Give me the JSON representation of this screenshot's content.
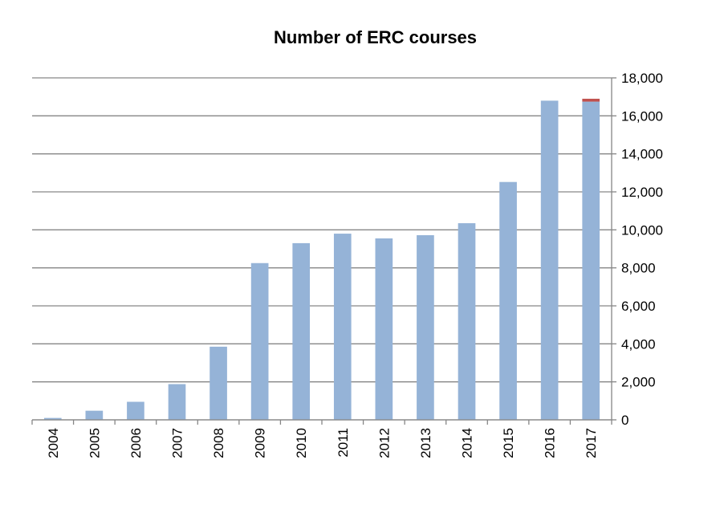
{
  "chart_data": {
    "type": "bar",
    "title": "Number of ERC courses",
    "xlabel": "",
    "ylabel": "",
    "categories": [
      "2004",
      "2005",
      "2006",
      "2007",
      "2008",
      "2009",
      "2010",
      "2011",
      "2012",
      "2013",
      "2014",
      "2015",
      "2016",
      "2017"
    ],
    "series": [
      {
        "values": [
          100,
          480,
          950,
          1880,
          3850,
          8250,
          9300,
          9800,
          9550,
          9720,
          10350,
          12520,
          16800,
          16750
        ],
        "color": "#95b3d7"
      },
      {
        "values": [
          0,
          0,
          0,
          0,
          0,
          0,
          0,
          0,
          0,
          0,
          0,
          0,
          0,
          150
        ],
        "color": "#c0504d"
      }
    ],
    "stacked": true,
    "ylim": [
      0,
      18000
    ],
    "yticks": [
      "0",
      "2,000",
      "4,000",
      "6,000",
      "8,000",
      "10,000",
      "12,000",
      "14,000",
      "16,000",
      "18,000"
    ],
    "y_axis_side": "right",
    "grid": true,
    "legend": "none"
  }
}
